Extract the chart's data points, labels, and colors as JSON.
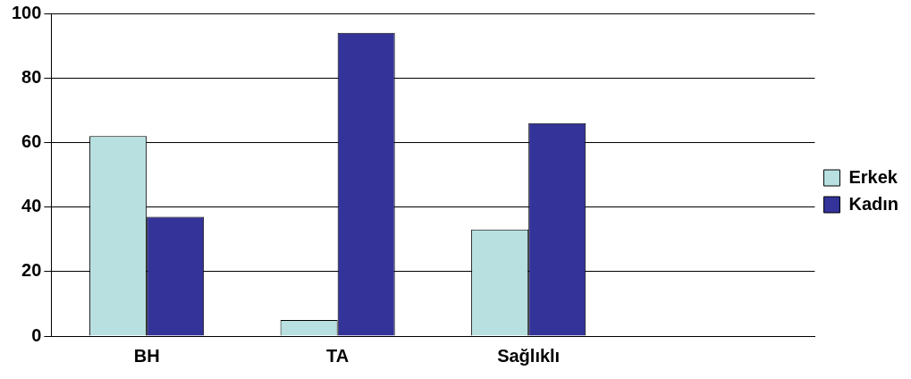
{
  "chart_data": {
    "type": "bar",
    "categories": [
      "BH",
      "TA",
      "Sağlıklı",
      null
    ],
    "series": [
      {
        "name": "Erkek",
        "color": "#b8e0e0",
        "values": [
          62,
          5,
          33,
          null
        ]
      },
      {
        "name": "Kadın",
        "color": "#333399",
        "values": [
          37,
          94,
          66,
          null
        ]
      }
    ],
    "ylim": [
      0,
      100
    ],
    "yticks": [
      0,
      20,
      40,
      60,
      80,
      100
    ],
    "grid": "y",
    "legend": "right"
  }
}
